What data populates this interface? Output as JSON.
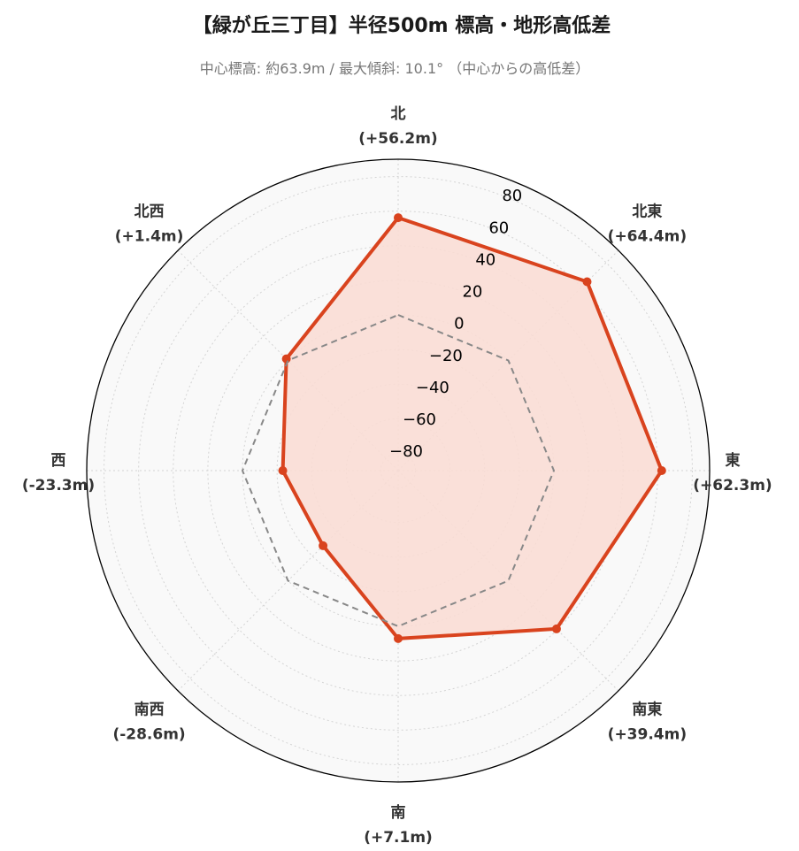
{
  "chart_data": {
    "type": "radar",
    "title": "【緑が丘三丁目】半径500m 標高・地形高低差",
    "subtitle": "中心標高: 約63.9m / 最大傾斜: 10.1° （中心からの高低差）",
    "r_ticks": [
      -80,
      -60,
      -40,
      -20,
      0,
      20,
      40,
      60,
      80
    ],
    "r_tick_labels": [
      "−80",
      "−60",
      "−40",
      "−20",
      "0",
      "20",
      "40",
      "60",
      "80"
    ],
    "rlim": [
      -90,
      90
    ],
    "grid": true,
    "directions": [
      {
        "name": "北",
        "value_label": "(+56.2m)",
        "value": 56.2
      },
      {
        "name": "北東",
        "value_label": "(+64.4m)",
        "value": 64.4
      },
      {
        "name": "東",
        "value_label": "(+62.3m)",
        "value": 62.3
      },
      {
        "name": "南東",
        "value_label": "(+39.4m)",
        "value": 39.4
      },
      {
        "name": "南",
        "value_label": "(+7.1m)",
        "value": 7.1
      },
      {
        "name": "南西",
        "value_label": "(-28.6m)",
        "value": -28.6
      },
      {
        "name": "西",
        "value_label": "(-23.3m)",
        "value": -23.3
      },
      {
        "name": "北西",
        "value_label": "(+1.4m)",
        "value": 1.4
      }
    ],
    "series": [
      {
        "values": [
          56.2,
          64.4,
          62.3,
          39.4,
          7.1,
          -28.6,
          -23.3,
          1.4
        ],
        "color": "#d9431e",
        "fill": "#fadcd3",
        "style": "solid"
      },
      {
        "values": [
          0,
          0,
          0,
          0,
          0,
          0,
          0,
          0
        ],
        "color": "#888888",
        "style": "dashed"
      }
    ],
    "background": "#f9f9f9"
  }
}
